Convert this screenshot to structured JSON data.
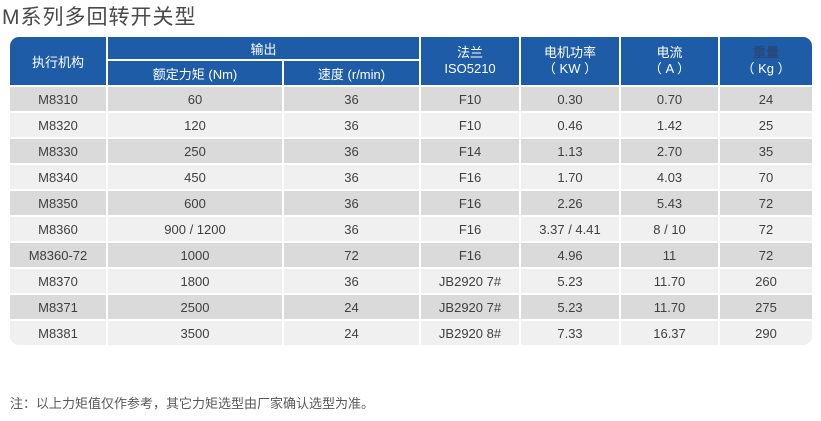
{
  "page_title": "M系列多回转开关型",
  "table": {
    "header": {
      "actuator": "执行机构",
      "output_group": "输出",
      "torque": "额定力矩 (Nm)",
      "speed": "速度 (r/min)",
      "flange_line1": "法兰",
      "flange_line2": "ISO5210",
      "power_line1": "电机功率",
      "power_line2": "（ KW ）",
      "current_line1": "电流",
      "current_line2": "（ A ）",
      "weight_line1": "重量",
      "weight_line2": "（ Kg ）"
    },
    "rows": [
      [
        "M8310",
        "60",
        "36",
        "F10",
        "0.30",
        "0.70",
        "24"
      ],
      [
        "M8320",
        "120",
        "36",
        "F10",
        "0.46",
        "1.42",
        "25"
      ],
      [
        "M8330",
        "250",
        "36",
        "F14",
        "1.13",
        "2.70",
        "35"
      ],
      [
        "M8340",
        "450",
        "36",
        "F16",
        "1.70",
        "4.03",
        "70"
      ],
      [
        "M8350",
        "600",
        "36",
        "F16",
        "2.26",
        "5.43",
        "72"
      ],
      [
        "M8360",
        "900 / 1200",
        "36",
        "F16",
        "3.37 / 4.41",
        "8 / 10",
        "72"
      ],
      [
        "M8360-72",
        "1000",
        "72",
        "F16",
        "4.96",
        "11",
        "72"
      ],
      [
        "M8370",
        "1800",
        "36",
        "JB2920 7#",
        "5.23",
        "11.70",
        "260"
      ],
      [
        "M8371",
        "2500",
        "24",
        "JB2920 7#",
        "5.23",
        "11.70",
        "275"
      ],
      [
        "M8381",
        "3500",
        "24",
        "JB2920 8#",
        "7.33",
        "16.37",
        "290"
      ]
    ]
  },
  "note": "注：以上力矩值仅作参考，其它力矩选型由厂家确认选型为准。",
  "colors": {
    "header_blue": "#1e5ca8",
    "row_dark": "#dadada",
    "row_light": "#f1f0f0",
    "weight_label": "#27497c"
  }
}
